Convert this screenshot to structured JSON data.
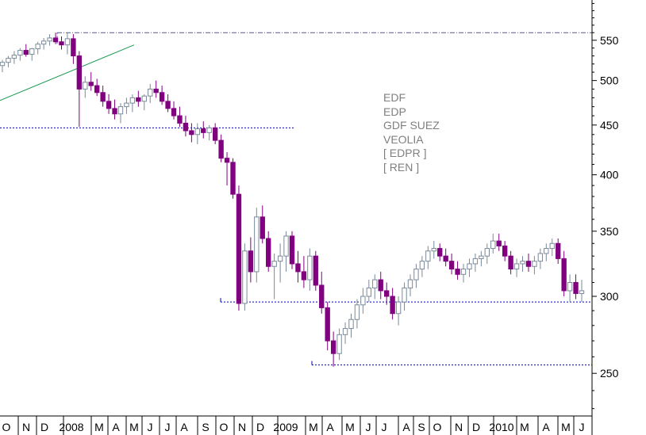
{
  "chart_data": {
    "type": "candlestick",
    "title": "",
    "scale": "log",
    "ylim": [
      226,
      605
    ],
    "y_ticks": [
      250,
      300,
      350,
      400,
      450,
      500,
      550
    ],
    "x_labels": [
      "O",
      "N",
      "D",
      "2008",
      "M",
      "A",
      "M",
      "J",
      "J",
      "A",
      "S",
      "O",
      "N",
      "D",
      "2009",
      "M",
      "A",
      "M",
      "J",
      "J",
      "A",
      "S",
      "O",
      "N",
      "D",
      "2010",
      "M",
      "A",
      "M",
      "J"
    ],
    "legend": [
      "EDF",
      "EDP",
      "GDF SUEZ",
      "VEOLIA",
      "[ EDPR ]",
      "[ REN ]"
    ],
    "grid": false,
    "reference_levels": [
      {
        "name": "high-level",
        "value": 560,
        "style": "dash-dot",
        "x_from": "2008-01",
        "x_to": "end"
      },
      {
        "name": "support-2008",
        "value": 447,
        "style": "dotted",
        "x_from": "start",
        "x_to": "2008-12"
      },
      {
        "name": "support-2009",
        "value": 296,
        "style": "dotted",
        "x_from": "2008-10",
        "x_to": "end"
      },
      {
        "name": "low-level",
        "value": 255,
        "style": "dotted",
        "x_from": "2009-03",
        "x_to": "end"
      }
    ],
    "trendline": {
      "from_value": 477,
      "to_value": 544,
      "x_from": "2007-10",
      "x_to": "2008-05"
    },
    "series": [
      {
        "values": [
          [
            518,
            525,
            510,
            522
          ],
          [
            522,
            530,
            516,
            527
          ],
          [
            527,
            536,
            520,
            531
          ],
          [
            531,
            540,
            524,
            537
          ],
          [
            537,
            545,
            529,
            532
          ],
          [
            532,
            540,
            524,
            539
          ],
          [
            539,
            548,
            532,
            545
          ],
          [
            545,
            553,
            538,
            549
          ],
          [
            549,
            558,
            543,
            553
          ],
          [
            553,
            560,
            545,
            548
          ],
          [
            548,
            555,
            538,
            544
          ],
          [
            544,
            560,
            532,
            552
          ],
          [
            552,
            558,
            520,
            530
          ],
          [
            530,
            536,
            448,
            490
          ],
          [
            490,
            505,
            480,
            498
          ],
          [
            498,
            510,
            488,
            494
          ],
          [
            494,
            502,
            482,
            486
          ],
          [
            486,
            494,
            470,
            476
          ],
          [
            476,
            484,
            462,
            468
          ],
          [
            468,
            478,
            456,
            462
          ],
          [
            462,
            474,
            452,
            470
          ],
          [
            470,
            480,
            462,
            474
          ],
          [
            474,
            484,
            464,
            480
          ],
          [
            480,
            488,
            470,
            476
          ],
          [
            476,
            484,
            466,
            482
          ],
          [
            482,
            496,
            474,
            490
          ],
          [
            490,
            500,
            480,
            486
          ],
          [
            486,
            494,
            472,
            476
          ],
          [
            476,
            484,
            464,
            468
          ],
          [
            468,
            476,
            456,
            460
          ],
          [
            460,
            470,
            448,
            452
          ],
          [
            452,
            460,
            438,
            444
          ],
          [
            444,
            452,
            432,
            440
          ],
          [
            440,
            452,
            430,
            446
          ],
          [
            446,
            454,
            436,
            442
          ],
          [
            442,
            450,
            434,
            447
          ],
          [
            447,
            452,
            430,
            434
          ],
          [
            434,
            440,
            412,
            416
          ],
          [
            416,
            422,
            390,
            412
          ],
          [
            412,
            416,
            378,
            382
          ],
          [
            382,
            390,
            290,
            295
          ],
          [
            295,
            340,
            290,
            334
          ],
          [
            334,
            345,
            310,
            318
          ],
          [
            318,
            370,
            310,
            362
          ],
          [
            362,
            372,
            340,
            344
          ],
          [
            344,
            350,
            318,
            322
          ],
          [
            322,
            332,
            298,
            326
          ],
          [
            326,
            340,
            310,
            330
          ],
          [
            330,
            350,
            318,
            346
          ],
          [
            346,
            350,
            320,
            324
          ],
          [
            324,
            334,
            310,
            318
          ],
          [
            318,
            330,
            306,
            312
          ],
          [
            312,
            336,
            304,
            330
          ],
          [
            330,
            334,
            304,
            308
          ],
          [
            308,
            318,
            288,
            292
          ],
          [
            292,
            296,
            264,
            270
          ],
          [
            270,
            276,
            254,
            262
          ],
          [
            262,
            278,
            258,
            274
          ],
          [
            274,
            282,
            268,
            278
          ],
          [
            278,
            288,
            272,
            284
          ],
          [
            284,
            298,
            278,
            294
          ],
          [
            294,
            306,
            288,
            300
          ],
          [
            300,
            312,
            296,
            306
          ],
          [
            306,
            316,
            298,
            312
          ],
          [
            312,
            318,
            298,
            304
          ],
          [
            304,
            310,
            294,
            300
          ],
          [
            300,
            306,
            284,
            288
          ],
          [
            288,
            300,
            280,
            296
          ],
          [
            296,
            310,
            290,
            306
          ],
          [
            306,
            316,
            300,
            312
          ],
          [
            312,
            324,
            306,
            320
          ],
          [
            320,
            330,
            314,
            326
          ],
          [
            326,
            338,
            320,
            334
          ],
          [
            334,
            342,
            328,
            336
          ],
          [
            336,
            340,
            326,
            330
          ],
          [
            330,
            336,
            322,
            326
          ],
          [
            326,
            332,
            316,
            320
          ],
          [
            320,
            326,
            312,
            316
          ],
          [
            316,
            324,
            310,
            320
          ],
          [
            320,
            328,
            314,
            324
          ],
          [
            324,
            332,
            318,
            328
          ],
          [
            328,
            334,
            322,
            330
          ],
          [
            330,
            340,
            324,
            336
          ],
          [
            336,
            348,
            332,
            342
          ],
          [
            342,
            348,
            334,
            338
          ],
          [
            338,
            342,
            326,
            330
          ],
          [
            330,
            334,
            316,
            320
          ],
          [
            320,
            328,
            314,
            324
          ],
          [
            324,
            330,
            318,
            326
          ],
          [
            326,
            332,
            318,
            322
          ],
          [
            322,
            330,
            316,
            326
          ],
          [
            326,
            336,
            320,
            332
          ],
          [
            332,
            340,
            326,
            336
          ],
          [
            336,
            344,
            330,
            340
          ],
          [
            340,
            344,
            324,
            328
          ],
          [
            328,
            334,
            300,
            304
          ],
          [
            304,
            316,
            296,
            310
          ],
          [
            310,
            316,
            298,
            302
          ],
          [
            302,
            312,
            296,
            304
          ]
        ]
      }
    ]
  }
}
